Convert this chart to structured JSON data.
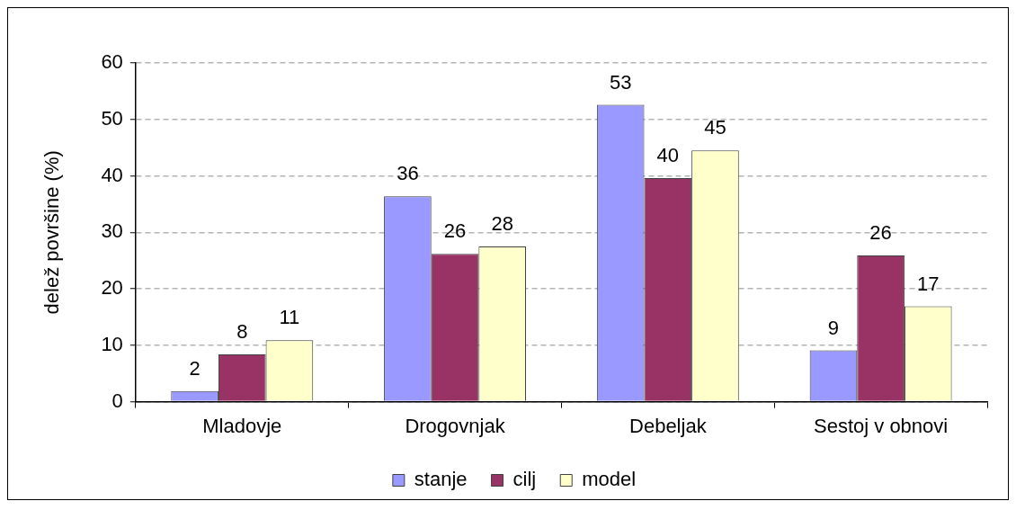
{
  "chart_data": {
    "type": "bar",
    "categories": [
      "Mladovje",
      "Drogovnjak",
      "Debeljak",
      "Sestoj v obnovi"
    ],
    "series": [
      {
        "name": "stanje",
        "color": "#9999ff",
        "values": [
          1.9,
          36.4,
          52.6,
          9.1
        ],
        "value_labels": [
          "2",
          "36",
          "53",
          "9"
        ]
      },
      {
        "name": "cilj",
        "color": "#993366",
        "values": [
          8.4,
          26.2,
          39.6,
          25.9
        ],
        "value_labels": [
          "8",
          "26",
          "40",
          "26"
        ]
      },
      {
        "name": "model",
        "color": "#ffffcc",
        "values": [
          10.9,
          27.5,
          44.5,
          16.9
        ],
        "value_labels": [
          "11",
          "28",
          "45",
          "17"
        ]
      }
    ],
    "ylabel": "delež površine (%)",
    "ylim": [
      0,
      60
    ],
    "yticks": [
      0,
      10,
      20,
      30,
      40,
      50,
      60
    ],
    "grid": "y",
    "legend": "bottom"
  }
}
